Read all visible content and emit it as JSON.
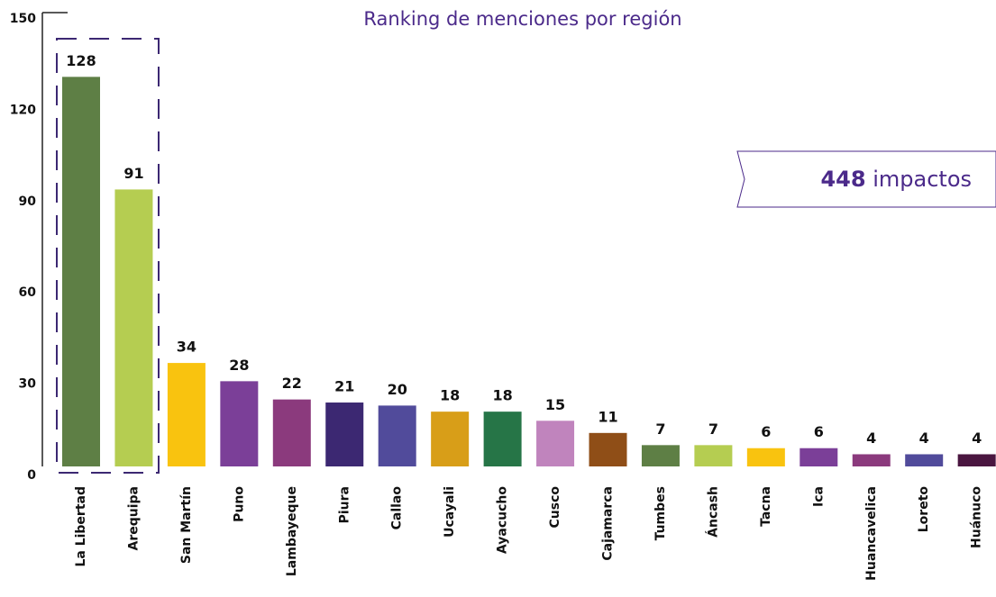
{
  "chart_data": {
    "type": "bar",
    "title": "Ranking de menciones por región",
    "categories": [
      "La Libertad",
      "Arequipa",
      "San Martín",
      "Puno",
      "Lambayeque",
      "Piura",
      "Callao",
      "Ucayali",
      "Ayacucho",
      "Cusco",
      "Cajamarca",
      "Tumbes",
      "Áncash",
      "Tacna",
      "Ica",
      "Huancavelica",
      "Loreto",
      "Huánuco"
    ],
    "values": [
      128,
      91,
      34,
      28,
      22,
      21,
      20,
      18,
      18,
      15,
      11,
      7,
      7,
      6,
      6,
      4,
      4,
      4
    ],
    "colors": [
      "#5e7f45",
      "#b5cd51",
      "#f9c30f",
      "#7b3f98",
      "#8b3a7d",
      "#3c2872",
      "#514b9b",
      "#d89e18",
      "#267547",
      "#c084bd",
      "#8f4e17",
      "#5e7f45",
      "#b5cd51",
      "#f9c30f",
      "#7b3f98",
      "#8b3a7d",
      "#514b9b",
      "#4a1640"
    ],
    "ylim": [
      0,
      150
    ],
    "yticks": [
      0,
      30,
      60,
      90,
      120,
      150
    ],
    "total": 448,
    "total_text": "impactos"
  }
}
